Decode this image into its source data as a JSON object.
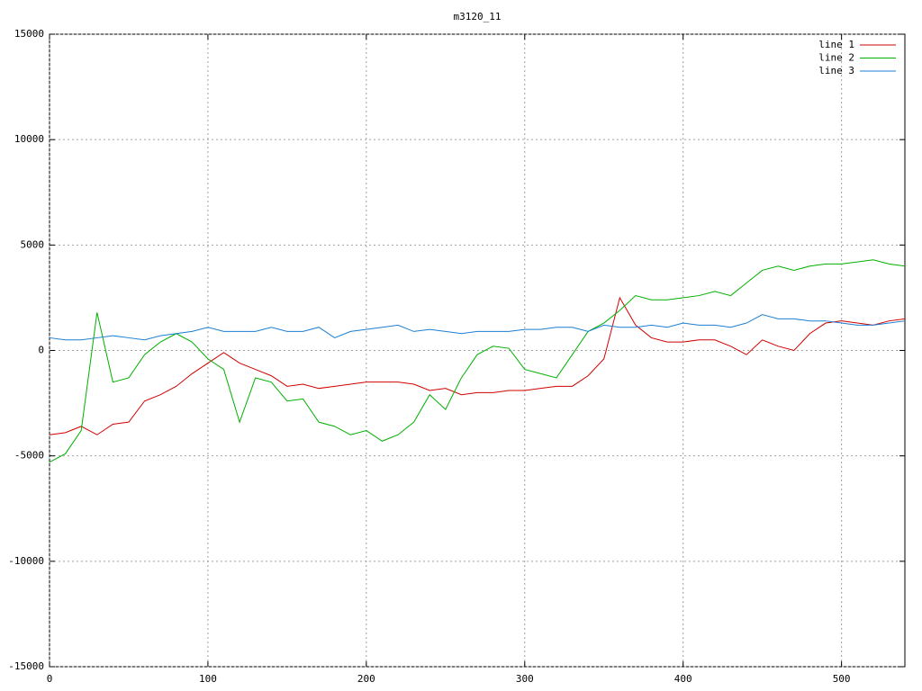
{
  "chart_data": {
    "type": "line",
    "title": "m3120_11",
    "x": [
      0,
      10,
      20,
      30,
      40,
      50,
      60,
      70,
      80,
      90,
      100,
      110,
      120,
      130,
      140,
      150,
      160,
      170,
      180,
      190,
      200,
      210,
      220,
      230,
      240,
      250,
      260,
      270,
      280,
      290,
      300,
      310,
      320,
      330,
      340,
      350,
      360,
      370,
      380,
      390,
      400,
      410,
      420,
      430,
      440,
      450,
      460,
      470,
      480,
      490,
      500,
      510,
      520,
      530,
      540
    ],
    "series": [
      {
        "name": "line 1",
        "color": "#d00000",
        "values": [
          -4000,
          -3900,
          -3600,
          -4000,
          -3500,
          -3400,
          -2400,
          -2100,
          -1700,
          -1100,
          -600,
          -100,
          -600,
          -900,
          -1200,
          -1700,
          -1600,
          -1800,
          -1700,
          -1600,
          -1500,
          -1500,
          -1500,
          -1600,
          -1900,
          -1800,
          -2100,
          -2000,
          -2000,
          -1900,
          -1900,
          -1800,
          -1700,
          -1700,
          -1200,
          -400,
          2500,
          1200,
          600,
          400,
          400,
          500,
          500,
          200,
          -200,
          500,
          200,
          0,
          800,
          1300,
          1400,
          1300,
          1200,
          1400,
          1500
        ]
      },
      {
        "name": "line 2",
        "color": "#00b000",
        "values": [
          -5300,
          -4900,
          -3800,
          1800,
          -1500,
          -1300,
          -200,
          400,
          800,
          400,
          -400,
          -900,
          -3400,
          -1300,
          -1500,
          -2400,
          -2300,
          -3400,
          -3600,
          -4000,
          -3800,
          -4300,
          -4000,
          -3400,
          -2100,
          -2800,
          -1300,
          -200,
          200,
          100,
          -900,
          -1100,
          -1300,
          -200,
          900,
          1300,
          1900,
          2600,
          2400,
          2400,
          2500,
          2600,
          2800,
          2600,
          3200,
          3800,
          4000,
          3800,
          4000,
          4100,
          4100,
          4200,
          4300,
          4100,
          4000
        ]
      },
      {
        "name": "line 3",
        "color": "#1a7fd4",
        "values": [
          600,
          500,
          500,
          600,
          700,
          600,
          500,
          700,
          800,
          900,
          1100,
          900,
          900,
          900,
          1100,
          900,
          900,
          1100,
          600,
          900,
          1000,
          1100,
          1200,
          900,
          1000,
          900,
          800,
          900,
          900,
          900,
          1000,
          1000,
          1100,
          1100,
          900,
          1200,
          1100,
          1100,
          1200,
          1100,
          1300,
          1200,
          1200,
          1100,
          1300,
          1700,
          1500,
          1500,
          1400,
          1400,
          1300,
          1200,
          1200,
          1300,
          1400
        ]
      }
    ],
    "xlim": [
      0,
      540
    ],
    "xticks": [
      0,
      100,
      200,
      300,
      400,
      500
    ],
    "ylim": [
      -15000,
      15000
    ],
    "yticks": [
      -15000,
      -10000,
      -5000,
      0,
      5000,
      10000,
      15000
    ],
    "grid": true,
    "legend": "top-right"
  }
}
